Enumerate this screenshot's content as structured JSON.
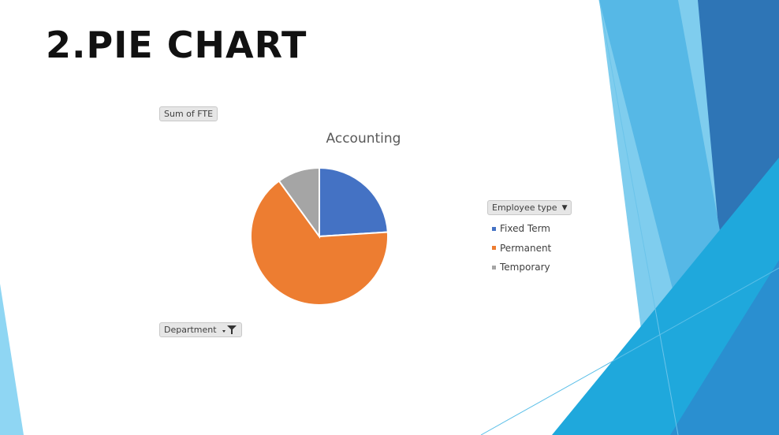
{
  "slide": {
    "title": "2.PIE CHART"
  },
  "pivot": {
    "values_field": "Sum of FTE",
    "filter_field": "Department",
    "legend_field": "Employee type"
  },
  "chart_data": {
    "type": "pie",
    "title": "Accounting",
    "categories": [
      "Fixed Term",
      "Permanent",
      "Temporary"
    ],
    "values": [
      24,
      66,
      10
    ],
    "colors": [
      "#4472c4",
      "#ed7d31",
      "#a5a5a5"
    ],
    "legend_position": "right"
  }
}
